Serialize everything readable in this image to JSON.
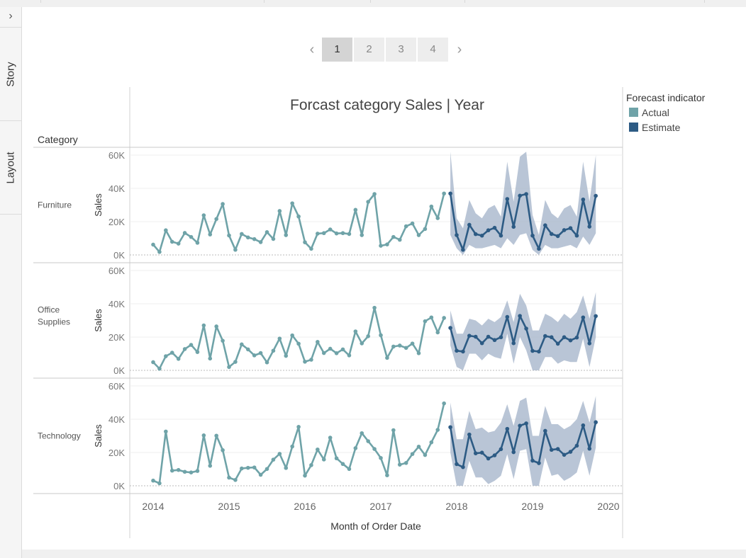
{
  "sidebar": {
    "expand_icon": "chevron-right-icon",
    "expand_glyph": "›",
    "tabs": [
      "Story",
      "Layout"
    ]
  },
  "pager": {
    "pages": [
      "1",
      "2",
      "3",
      "4"
    ],
    "current": "1",
    "prev_icon": "chevron-left-icon",
    "next_icon": "chevron-right-icon",
    "prev_glyph": "‹",
    "next_glyph": "›"
  },
  "chart_data": {
    "type": "line",
    "title": "Forcast  category Sales | Year",
    "xlabel": "Month of Order Date",
    "ylabel": "Sales",
    "row_header": "Category",
    "x_ticks": [
      "2014",
      "2015",
      "2016",
      "2017",
      "2018",
      "2019",
      "2020"
    ],
    "xlim": [
      "2014-01",
      "2020-01"
    ],
    "ylim": [
      0,
      60000
    ],
    "y_ticks": [
      "0K",
      "20K",
      "40K",
      "60K"
    ],
    "legend": {
      "title": "Forecast indicator",
      "placement": "right",
      "items": [
        {
          "name": "Actual",
          "color": "#6fa3a8"
        },
        {
          "name": "Estimate",
          "color": "#2d5b84"
        }
      ]
    },
    "band_color": "#a8b6cc",
    "grid": true,
    "panels": [
      {
        "label": "Furniture",
        "actual": {
          "start": "2014-01",
          "values": [
            6200,
            1800,
            14800,
            7900,
            6800,
            13200,
            10800,
            7300,
            23800,
            12300,
            21600,
            30600,
            11700,
            3100,
            12600,
            10500,
            9500,
            7700,
            13700,
            9600,
            26400,
            11900,
            31000,
            23100,
            7600,
            3700,
            12800,
            13100,
            15300,
            12900,
            13100,
            12600,
            27100,
            11900,
            31900,
            36600,
            5500,
            6300,
            10800,
            9100,
            17200,
            18900,
            11900,
            15600,
            29100,
            22100,
            36900
          ]
        },
        "estimate": {
          "start": "2017-12",
          "values": [
            36900,
            11900,
            3100,
            18100,
            12500,
            11600,
            14800,
            16300,
            11600,
            33600,
            16900,
            35600,
            36600,
            11600,
            3700,
            17800,
            12600,
            11300,
            14900,
            16100,
            11600,
            33300,
            17000,
            35500
          ],
          "upper": [
            62000,
            22000,
            16000,
            33000,
            25000,
            22000,
            28000,
            30000,
            23000,
            56000,
            32000,
            59000,
            62000,
            24000,
            12000,
            33000,
            25000,
            22000,
            28000,
            30000,
            23000,
            56000,
            32000,
            60000
          ],
          "lower": [
            12000,
            4000,
            0,
            6000,
            4000,
            4000,
            5000,
            6000,
            4000,
            10000,
            6000,
            12000,
            13000,
            3000,
            0,
            6000,
            4000,
            4000,
            5000,
            6000,
            4000,
            11000,
            6000,
            13000
          ]
        }
      },
      {
        "label": "Office Supplies",
        "actual": {
          "start": "2014-01",
          "values": [
            4900,
            1000,
            8500,
            10600,
            6900,
            12800,
            15300,
            11000,
            27000,
            7100,
            26400,
            17800,
            2000,
            5100,
            15600,
            12600,
            9000,
            10400,
            4800,
            11800,
            19100,
            8700,
            21000,
            16000,
            5200,
            6400,
            17100,
            10400,
            13000,
            10300,
            12600,
            9000,
            23400,
            16200,
            20500,
            37600,
            21100,
            7500,
            14300,
            14900,
            13500,
            16100,
            10300,
            29500,
            31800,
            22800,
            31500
          ]
        },
        "estimate": {
          "start": "2017-12",
          "values": [
            25500,
            11800,
            11300,
            20800,
            20200,
            16300,
            20200,
            18200,
            19900,
            32100,
            16300,
            32700,
            25100,
            11700,
            11300,
            20600,
            19900,
            16000,
            19900,
            18000,
            19700,
            31800,
            16200,
            32600
          ],
          "upper": [
            36000,
            22000,
            22000,
            31000,
            30000,
            27000,
            31000,
            29000,
            32000,
            42000,
            29000,
            46000,
            39000,
            24000,
            24000,
            34000,
            32000,
            29000,
            34000,
            31000,
            35000,
            45000,
            31000,
            47000
          ],
          "lower": [
            15000,
            2000,
            0,
            10000,
            10000,
            6000,
            10000,
            8000,
            7000,
            22000,
            4000,
            20000,
            12000,
            0,
            0,
            8000,
            8000,
            4000,
            6000,
            5000,
            5000,
            19000,
            2000,
            20000
          ]
        }
      },
      {
        "label": "Technology",
        "actual": {
          "start": "2014-01",
          "values": [
            3100,
            1500,
            32600,
            9100,
            9500,
            8400,
            8000,
            8900,
            30300,
            12000,
            30100,
            21400,
            4900,
            3500,
            10400,
            10800,
            11000,
            6600,
            10100,
            15700,
            19200,
            10700,
            23600,
            35400,
            6100,
            12400,
            21800,
            15800,
            28900,
            16500,
            13100,
            10100,
            22600,
            31600,
            26800,
            22100,
            16700,
            6300,
            33400,
            12700,
            13700,
            19100,
            23500,
            18500,
            26100,
            33600,
            49500
          ]
        },
        "estimate": {
          "start": "2017-12",
          "values": [
            35200,
            13000,
            11200,
            30800,
            19500,
            19900,
            16400,
            18300,
            22000,
            34200,
            20200,
            36100,
            37500,
            15100,
            13600,
            33000,
            21600,
            22100,
            18600,
            20400,
            24100,
            36300,
            22300,
            38200
          ],
          "upper": [
            50000,
            28000,
            28000,
            45000,
            34000,
            35000,
            32000,
            33000,
            38000,
            49000,
            36000,
            51000,
            53000,
            30000,
            30000,
            48000,
            37000,
            37000,
            34000,
            36000,
            40000,
            51000,
            38000,
            54000
          ],
          "lower": [
            20000,
            0,
            0,
            15000,
            5000,
            5000,
            1000,
            3000,
            6000,
            19000,
            4000,
            21000,
            22000,
            0,
            0,
            17000,
            6000,
            7000,
            3000,
            5000,
            8000,
            21000,
            6000,
            23000
          ]
        }
      }
    ]
  }
}
